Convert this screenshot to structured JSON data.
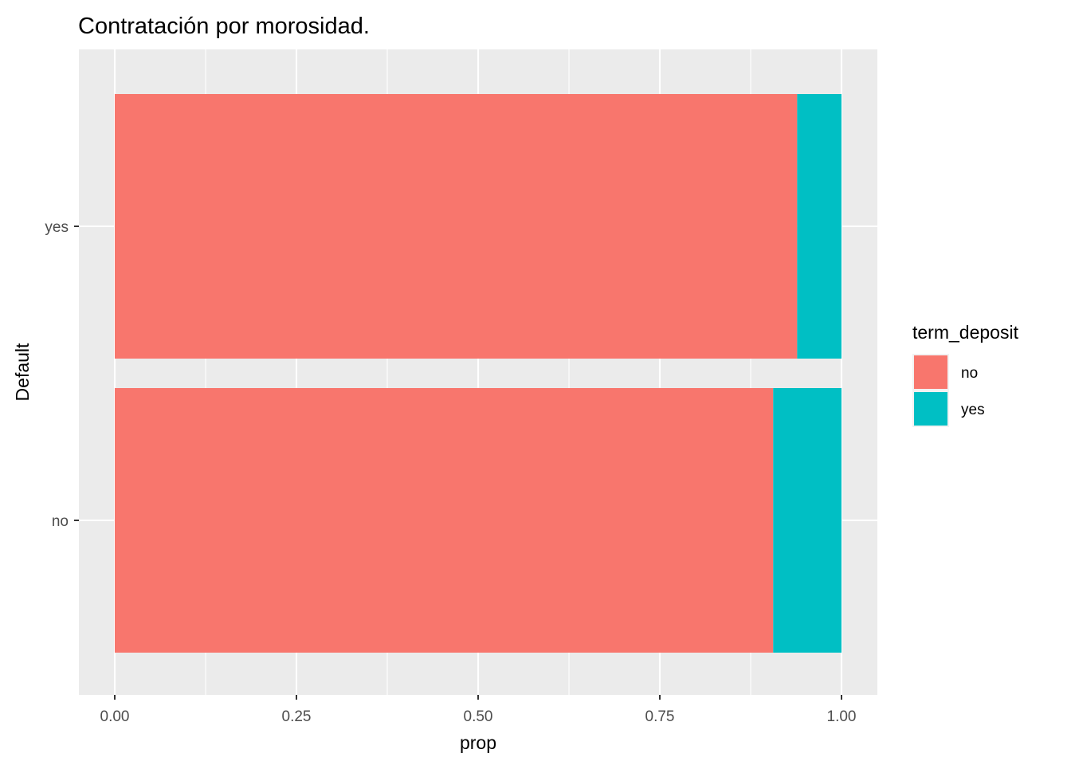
{
  "chart_data": {
    "type": "bar",
    "orientation": "horizontal",
    "stacked": true,
    "title": "Contratación por morosidad.",
    "xlabel": "prop",
    "ylabel": "Default",
    "xlim": [
      0,
      1
    ],
    "x_ticks": [
      "0.00",
      "0.25",
      "0.50",
      "0.75",
      "1.00"
    ],
    "x_tick_values": [
      0,
      0.25,
      0.5,
      0.75,
      1.0
    ],
    "categories": [
      "no",
      "yes"
    ],
    "series": [
      {
        "name": "no",
        "color": "#F8766D",
        "values": [
          0.906,
          0.939
        ]
      },
      {
        "name": "yes",
        "color": "#00BFC4",
        "values": [
          0.094,
          0.061
        ]
      }
    ],
    "legend": {
      "title": "term_deposit",
      "position": "right"
    },
    "grid": true,
    "panel_background": "#EBEBEB"
  }
}
